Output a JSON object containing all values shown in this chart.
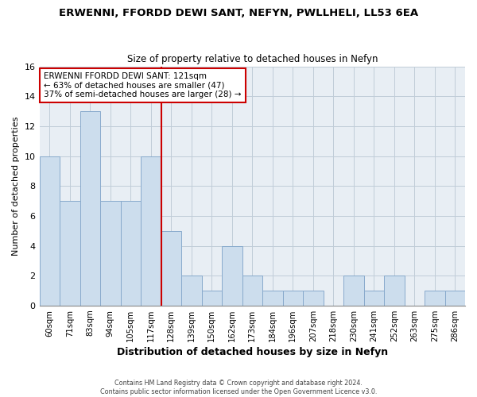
{
  "title": "ERWENNI, FFORDD DEWI SANT, NEFYN, PWLLHELI, LL53 6EA",
  "subtitle": "Size of property relative to detached houses in Nefyn",
  "xlabel": "Distribution of detached houses by size in Nefyn",
  "ylabel": "Number of detached properties",
  "bin_labels": [
    "60sqm",
    "71sqm",
    "83sqm",
    "94sqm",
    "105sqm",
    "117sqm",
    "128sqm",
    "139sqm",
    "150sqm",
    "162sqm",
    "173sqm",
    "184sqm",
    "196sqm",
    "207sqm",
    "218sqm",
    "230sqm",
    "241sqm",
    "252sqm",
    "263sqm",
    "275sqm",
    "286sqm"
  ],
  "counts": [
    10,
    7,
    13,
    7,
    7,
    10,
    5,
    2,
    1,
    4,
    2,
    1,
    1,
    1,
    0,
    2,
    1,
    2,
    0,
    1,
    1
  ],
  "property_line_x": 5.5,
  "bar_color": "#ccdded",
  "bar_edgecolor": "#88aacc",
  "property_line_color": "#cc0000",
  "annotation_line1": "ERWENNI FFORDD DEWI SANT: 121sqm",
  "annotation_line2": "← 63% of detached houses are smaller (47)",
  "annotation_line3": "37% of semi-detached houses are larger (28) →",
  "ylim": [
    0,
    16
  ],
  "yticks": [
    0,
    2,
    4,
    6,
    8,
    10,
    12,
    14,
    16
  ],
  "footer": "Contains HM Land Registry data © Crown copyright and database right 2024.\nContains public sector information licensed under the Open Government Licence v3.0.",
  "plot_bg_color": "#e8eef4",
  "grid_color": "#c0ccd8",
  "title_fontsize": 9.5,
  "subtitle_fontsize": 8.5
}
